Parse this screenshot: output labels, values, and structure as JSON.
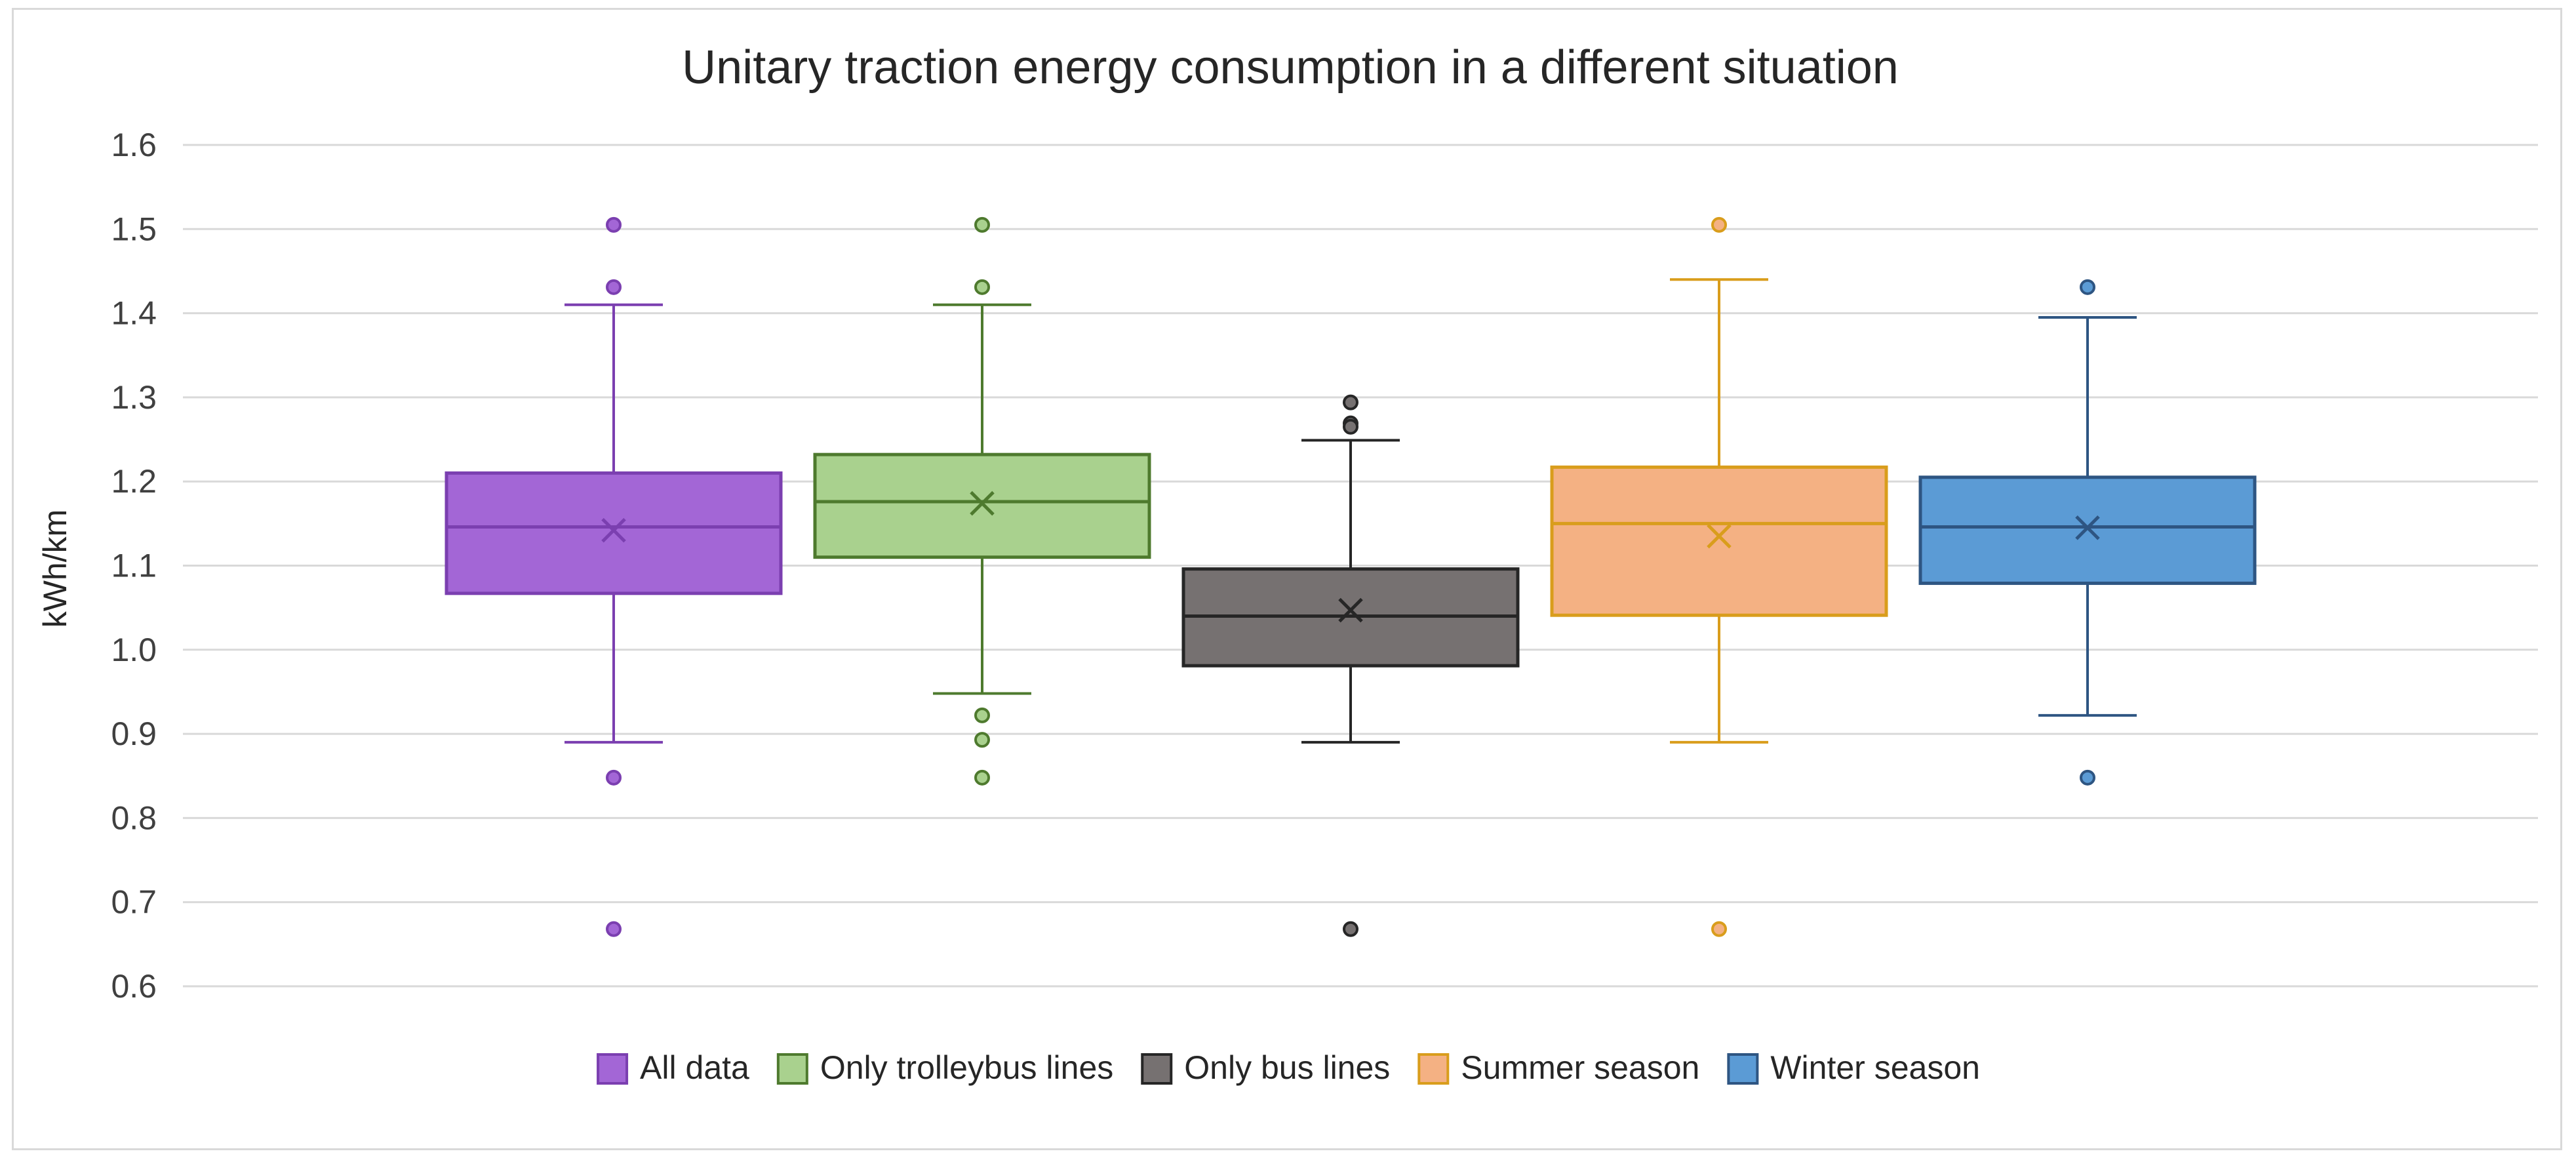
{
  "chart_data": {
    "type": "boxplot",
    "title": "Unitary traction energy consumption in a different situation",
    "xlabel": "",
    "ylabel": "kWh/km",
    "ylim": [
      0.6,
      1.6
    ],
    "yticks": [
      "0.6",
      "0.7",
      "0.8",
      "0.9",
      "1.0",
      "1.1",
      "1.2",
      "1.3",
      "1.4",
      "1.5",
      "1.6"
    ],
    "grid": true,
    "legend_position": "bottom",
    "series": [
      {
        "name": "All data",
        "fill": "#a366d6",
        "stroke": "#7b3fb0",
        "whisker_low": 0.89,
        "q1": 1.067,
        "median": 1.146,
        "q3": 1.21,
        "whisker_high": 1.41,
        "mean": 1.142,
        "outliers": [
          1.505,
          1.431,
          0.848,
          0.668
        ]
      },
      {
        "name": "Only trolleybus lines",
        "fill": "#a9d18e",
        "stroke": "#4e7a2e",
        "whisker_low": 0.948,
        "q1": 1.11,
        "median": 1.176,
        "q3": 1.232,
        "whisker_high": 1.41,
        "mean": 1.174,
        "outliers": [
          1.505,
          1.431,
          0.922,
          0.893,
          0.848
        ]
      },
      {
        "name": "Only bus lines",
        "fill": "#767171",
        "stroke": "#262626",
        "whisker_low": 0.89,
        "q1": 0.981,
        "median": 1.04,
        "q3": 1.096,
        "whisker_high": 1.249,
        "mean": 1.047,
        "outliers": [
          1.294,
          1.269,
          1.265,
          0.668
        ]
      },
      {
        "name": "Summer season",
        "fill": "#f4b183",
        "stroke": "#d99d1c",
        "whisker_low": 0.89,
        "q1": 1.041,
        "median": 1.15,
        "q3": 1.217,
        "whisker_high": 1.44,
        "mean": 1.135,
        "outliers": [
          1.505,
          0.668
        ]
      },
      {
        "name": "Winter season",
        "fill": "#5b9bd5",
        "stroke": "#2e5582",
        "whisker_low": 0.922,
        "q1": 1.079,
        "median": 1.146,
        "q3": 1.205,
        "whisker_high": 1.395,
        "mean": 1.145,
        "outliers": [
          1.431,
          0.848
        ]
      }
    ]
  }
}
